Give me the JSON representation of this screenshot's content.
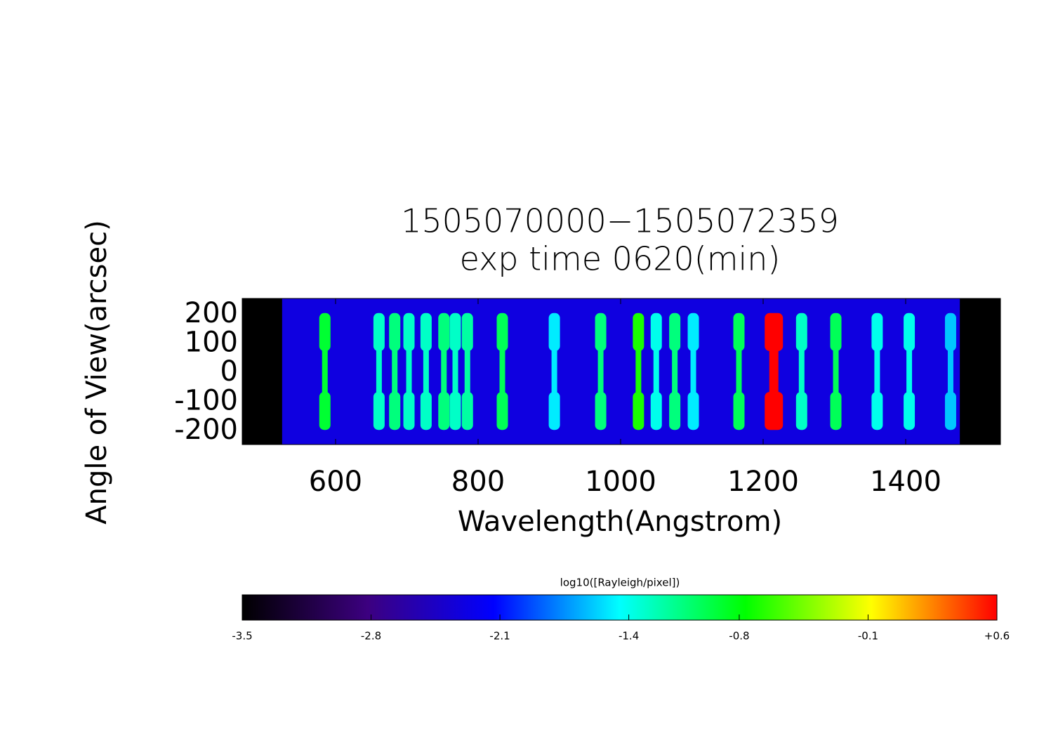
{
  "chart_data": {
    "type": "spectral_image",
    "title": [
      "1505070000−1505072359",
      "exp time 0620(min)"
    ],
    "xlabel": "Wavelength(Angstrom)",
    "ylabel": "Angle of View(arcsec)",
    "xlim": [
      469,
      1533
    ],
    "xticks": [
      600,
      800,
      1000,
      1200,
      1400
    ],
    "ylim": [
      -250,
      250
    ],
    "yticks": [
      -200,
      -100,
      0,
      100,
      200
    ],
    "extent": [
      525,
      1476
    ],
    "background": -2.3,
    "lines": [
      {
        "wavelength": 585,
        "value": -0.9
      },
      {
        "wavelength": 661,
        "value": -1.3
      },
      {
        "wavelength": 683,
        "value": -1.1
      },
      {
        "wavelength": 703,
        "value": -1.3
      },
      {
        "wavelength": 727,
        "value": -1.3
      },
      {
        "wavelength": 752,
        "value": -1.1
      },
      {
        "wavelength": 768,
        "value": -1.3
      },
      {
        "wavelength": 785,
        "value": -1.2
      },
      {
        "wavelength": 834,
        "value": -1.0
      },
      {
        "wavelength": 907,
        "value": -1.5
      },
      {
        "wavelength": 972,
        "value": -1.1
      },
      {
        "wavelength": 1025,
        "value": -0.7
      },
      {
        "wavelength": 1050,
        "value": -1.4
      },
      {
        "wavelength": 1076,
        "value": -1.1
      },
      {
        "wavelength": 1102,
        "value": -1.5
      },
      {
        "wavelength": 1166,
        "value": -1.0
      },
      {
        "wavelength": 1215,
        "value": 0.6
      },
      {
        "wavelength": 1254,
        "value": -1.3
      },
      {
        "wavelength": 1302,
        "value": -1.0
      },
      {
        "wavelength": 1360,
        "value": -1.4
      },
      {
        "wavelength": 1405,
        "value": -1.4
      },
      {
        "wavelength": 1463,
        "value": -1.6
      }
    ],
    "colorbar": {
      "label": "log10([Rayleigh/pixel])",
      "lim": [
        -3.5,
        0.6
      ],
      "ticks": [
        -3.5,
        -2.8,
        -2.1,
        -1.4,
        -0.8,
        -0.1,
        {
          "value": 0.6,
          "label": "+0.6"
        }
      ],
      "colors": [
        "#000000",
        "#3c0080",
        "#0000ff",
        "#00ffff",
        "#00ff00",
        "#ffff00",
        "#ff0000",
        "#ffffff"
      ]
    }
  }
}
